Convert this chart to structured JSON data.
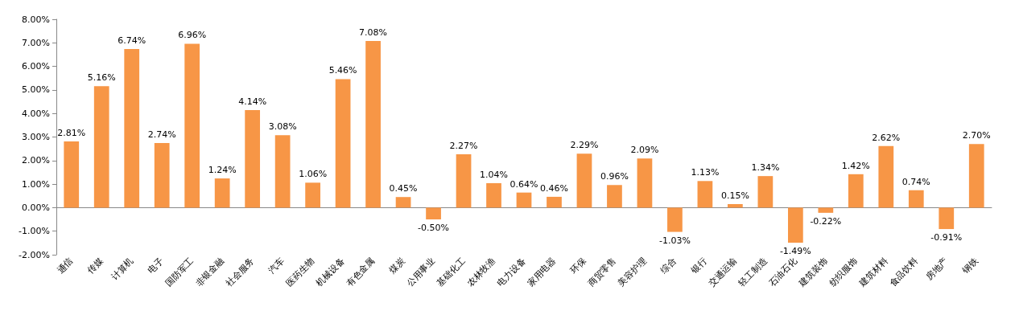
{
  "chart_data": {
    "type": "bar",
    "categories": [
      "通信",
      "传媒",
      "计算机",
      "电子",
      "国防军工",
      "非银金融",
      "社会服务",
      "汽车",
      "医药生物",
      "机械设备",
      "有色金属",
      "煤炭",
      "公用事业",
      "基础化工",
      "农林牧渔",
      "电力设备",
      "家用电器",
      "环保",
      "商贸零售",
      "美容护理",
      "综合",
      "银行",
      "交通运输",
      "轻工制造",
      "石油石化",
      "建筑装饰",
      "纺织服饰",
      "建筑材料",
      "食品饮料",
      "房地产",
      "钢铁"
    ],
    "values": [
      2.81,
      5.16,
      6.74,
      2.74,
      6.96,
      1.24,
      4.14,
      3.08,
      1.06,
      5.46,
      7.08,
      0.45,
      -0.5,
      2.27,
      1.04,
      0.64,
      0.46,
      2.29,
      0.96,
      2.09,
      -1.03,
      1.13,
      0.15,
      1.34,
      -1.49,
      -0.22,
      1.42,
      2.62,
      0.74,
      -0.91,
      2.7
    ],
    "value_labels": [
      "2.81%",
      "5.16%",
      "6.74%",
      "2.74%",
      "6.96%",
      "1.24%",
      "4.14%",
      "3.08%",
      "1.06%",
      "5.46%",
      "7.08%",
      "0.45%",
      "-0.50%",
      "2.27%",
      "1.04%",
      "0.64%",
      "0.46%",
      "2.29%",
      "0.96%",
      "2.09%",
      "-1.03%",
      "1.13%",
      "0.15%",
      "1.34%",
      "-1.49%",
      "-0.22%",
      "1.42%",
      "2.62%",
      "0.74%",
      "-0.91%",
      "2.70%"
    ],
    "color": "#f79646",
    "ylim": [
      -2,
      8
    ],
    "yticks": [
      {
        "value": -2,
        "label": "-2.00%"
      },
      {
        "value": -1,
        "label": "-1.00%"
      },
      {
        "value": 0,
        "label": "0.00%"
      },
      {
        "value": 1,
        "label": "1.00%"
      },
      {
        "value": 2,
        "label": "2.00%"
      },
      {
        "value": 3,
        "label": "3.00%"
      },
      {
        "value": 4,
        "label": "4.00%"
      },
      {
        "value": 5,
        "label": "5.00%"
      },
      {
        "value": 6,
        "label": "6.00%"
      },
      {
        "value": 7,
        "label": "7.00%"
      },
      {
        "value": 8,
        "label": "8.00%"
      }
    ],
    "tick_labels": true
  }
}
